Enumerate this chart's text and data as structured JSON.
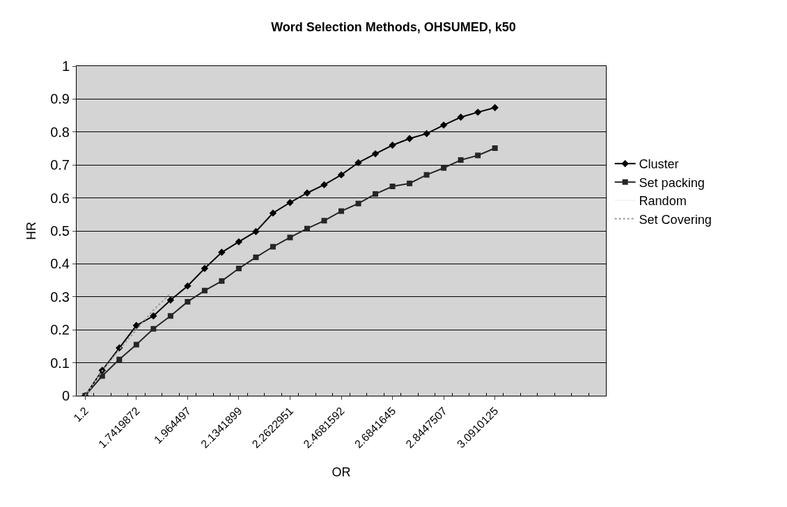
{
  "chart_data": {
    "type": "line",
    "title": "Word Selection Methods, OHSUMED, k50",
    "xlabel": "OR",
    "ylabel": "HR",
    "categories": [
      "1.2",
      null,
      null,
      "1.7419872",
      null,
      null,
      "1.964497",
      null,
      null,
      "2.1341899",
      null,
      null,
      "2.2622951",
      null,
      null,
      "2.4681592",
      null,
      null,
      "2.6841645",
      null,
      null,
      "2.8447507",
      null,
      null,
      "3.0910125",
      null,
      null,
      null,
      null,
      null,
      null
    ],
    "series": [
      {
        "name": "Cluster",
        "color": "#000000",
        "marker": "diamond",
        "line_style": "solid",
        "values": [
          0,
          0.077,
          0.145,
          0.213,
          0.242,
          0.29,
          0.333,
          0.386,
          0.435,
          0.467,
          0.498,
          0.554,
          0.586,
          0.615,
          0.64,
          0.67,
          0.707,
          0.734,
          0.76,
          0.78,
          0.795,
          0.821,
          0.845,
          0.86,
          0.874,
          null,
          null,
          null,
          null,
          null,
          null
        ]
      },
      {
        "name": "Set packing",
        "color": "#262626",
        "marker": "square",
        "line_style": "solid",
        "values": [
          0,
          0.06,
          0.11,
          0.155,
          0.203,
          0.242,
          0.285,
          0.319,
          0.348,
          0.386,
          0.42,
          0.452,
          0.48,
          0.507,
          0.531,
          0.56,
          0.583,
          0.612,
          0.635,
          0.644,
          0.67,
          0.691,
          0.715,
          0.729,
          0.751,
          null,
          null,
          null,
          null,
          null,
          null
        ]
      },
      {
        "name": "Random",
        "color": "#f4f4f4",
        "marker": "none",
        "line_style": "solid",
        "values": [
          null,
          null,
          null,
          null,
          null,
          null,
          null,
          null,
          null,
          null,
          null,
          null,
          null,
          null,
          null,
          null,
          null,
          null,
          null,
          null,
          null,
          null,
          null,
          null,
          null,
          null,
          null,
          null,
          null,
          null,
          null
        ]
      },
      {
        "name": "Set Covering",
        "color": "#9a9a9a",
        "marker": "none",
        "line_style": "dotted",
        "values": [
          0,
          0.075,
          0.14,
          0.2,
          0.26,
          0.31,
          null,
          null,
          null,
          null,
          null,
          null,
          null,
          null,
          null,
          null,
          null,
          null,
          null,
          null,
          null,
          null,
          null,
          null,
          null,
          null,
          null,
          null,
          null,
          null,
          null
        ]
      }
    ],
    "ylim": [
      0,
      1
    ],
    "yticks": [
      0,
      0.1,
      0.2,
      0.3,
      0.4,
      0.5,
      0.6,
      0.7,
      0.8,
      0.9,
      1
    ],
    "grid": "y",
    "legend": "right"
  }
}
